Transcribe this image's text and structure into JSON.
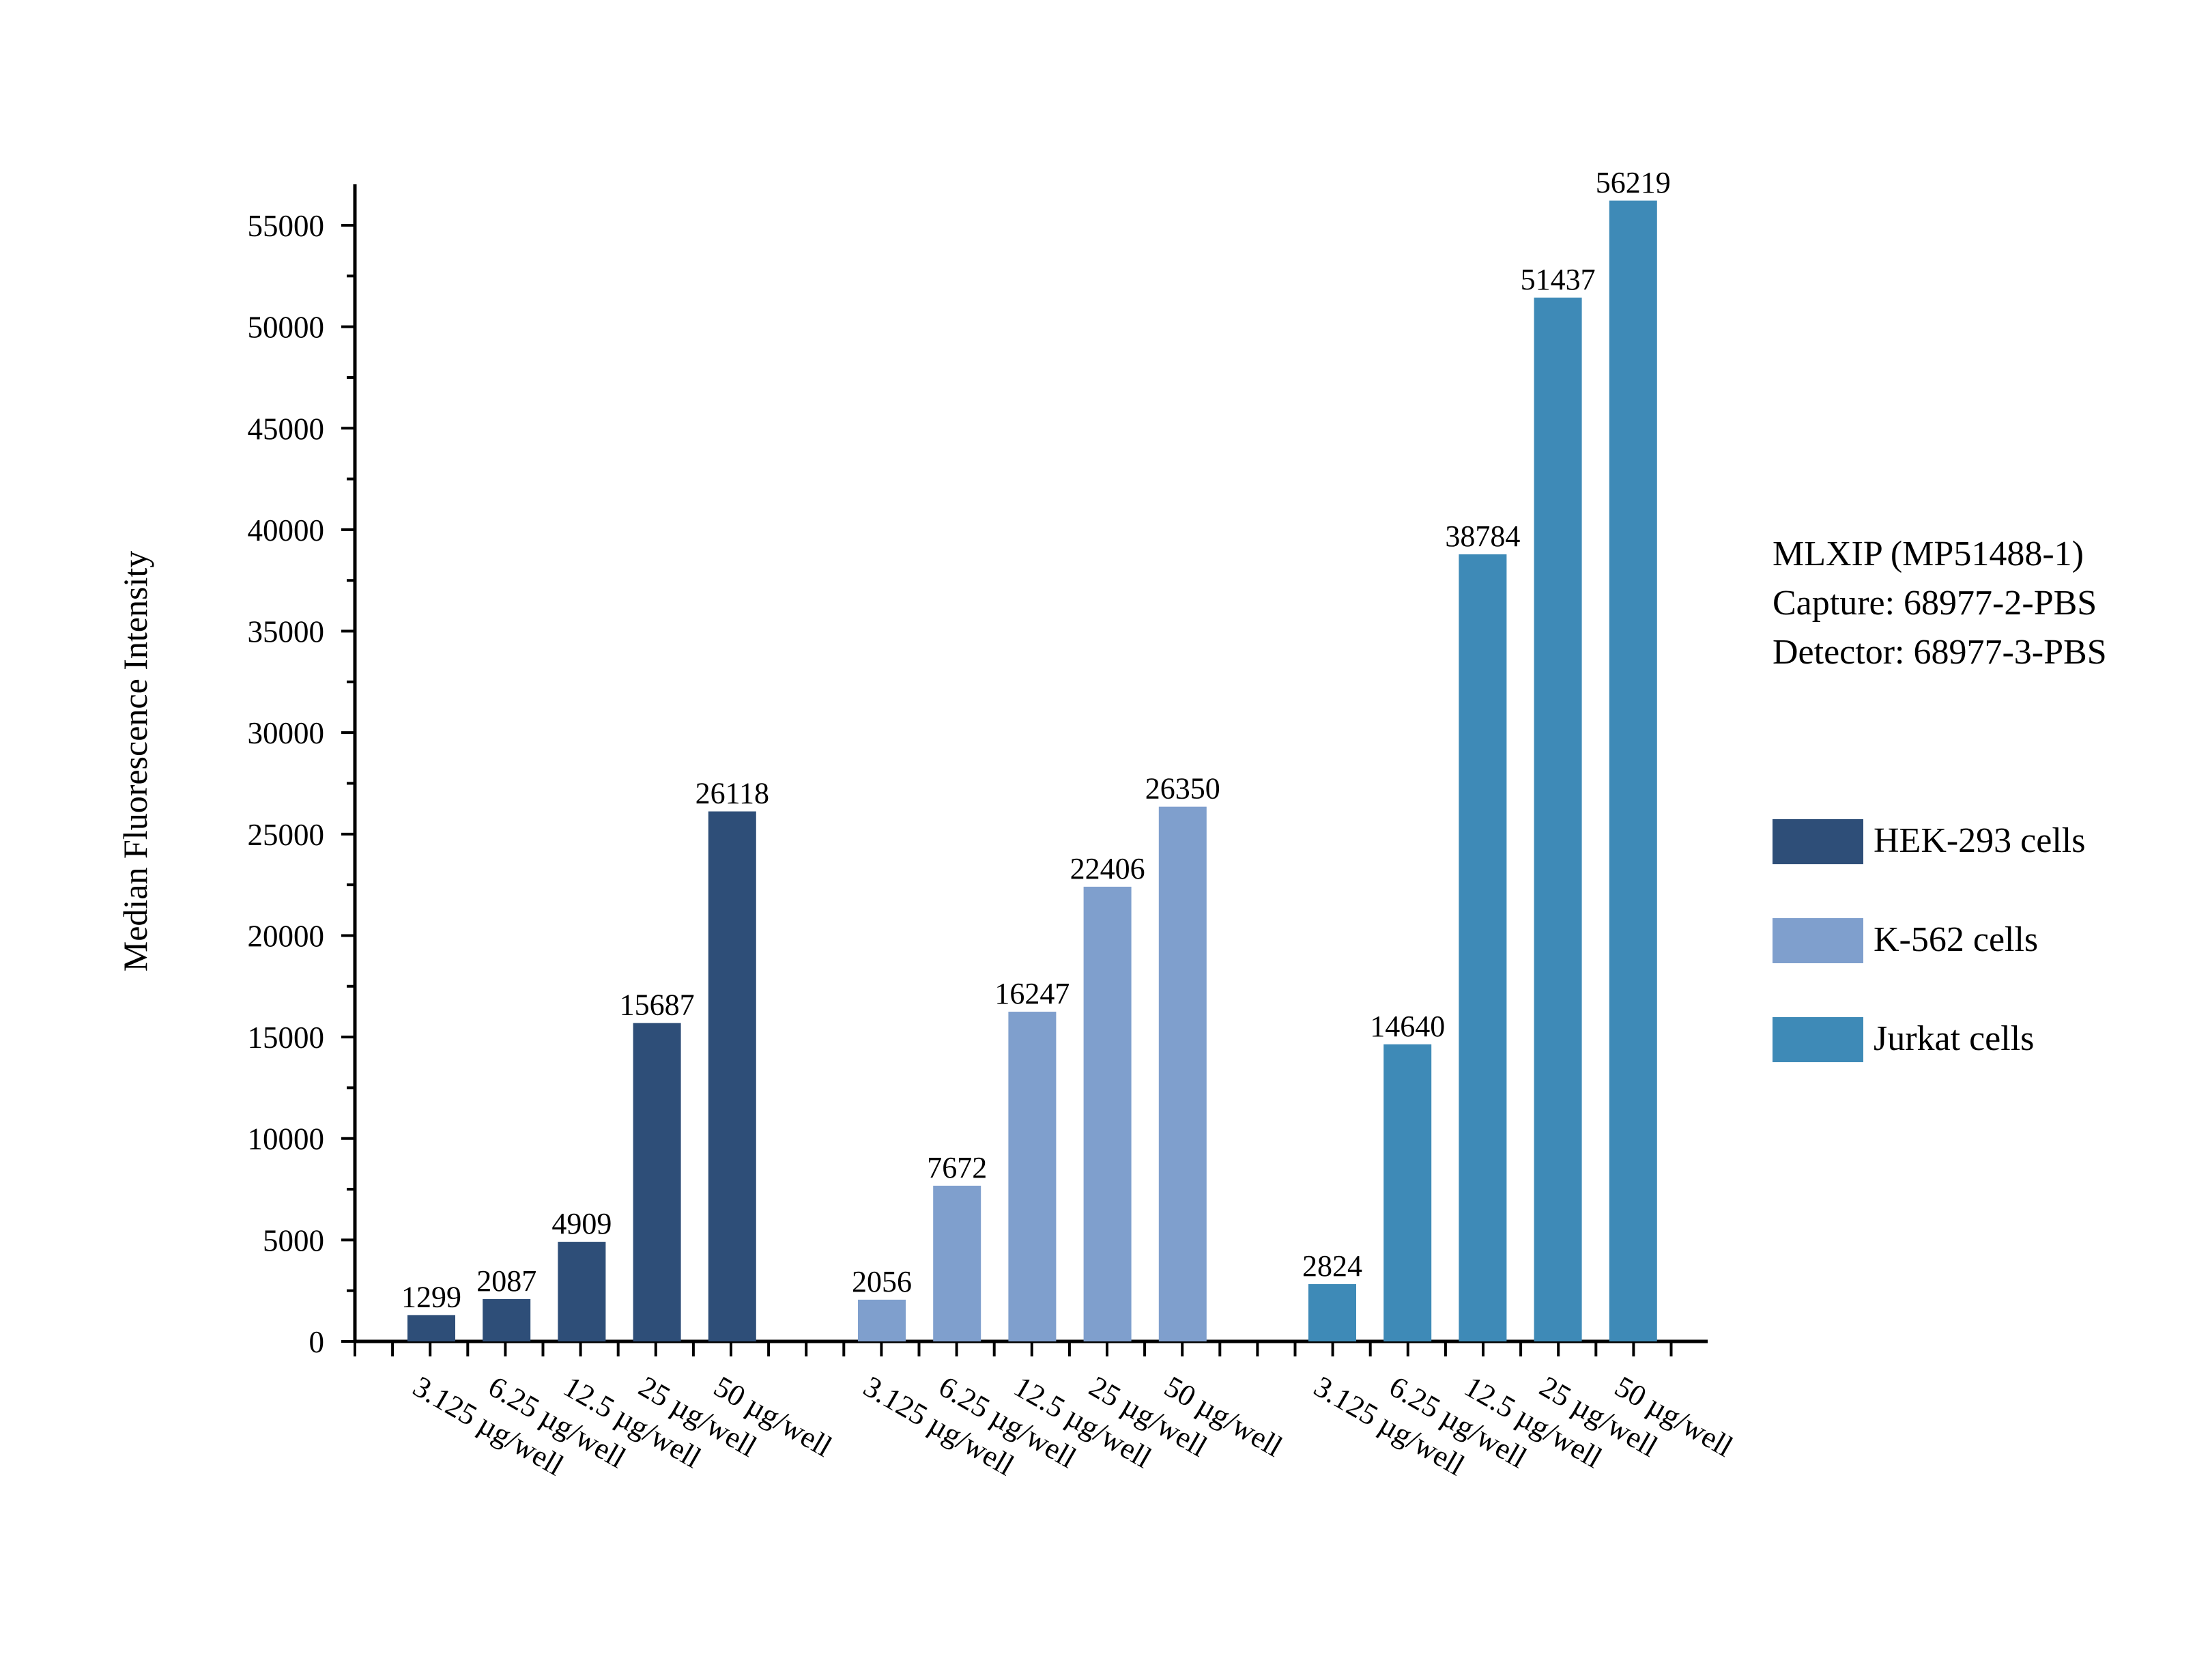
{
  "chart_data": {
    "type": "bar",
    "ylabel": "Median Fluorescence Intensity",
    "ylim": [
      0,
      57000
    ],
    "yticks": [
      0,
      5000,
      10000,
      15000,
      20000,
      25000,
      30000,
      35000,
      40000,
      45000,
      50000,
      55000
    ],
    "y_minor_step": 2500,
    "categories": [
      "3.125 µg/well",
      "6.25 µg/well",
      "12.5 µg/well",
      "25 µg/well",
      "50 µg/well"
    ],
    "series": [
      {
        "name": "HEK-293 cells",
        "color": "#2E4E78",
        "values": [
          1299,
          2087,
          4909,
          15687,
          26118
        ]
      },
      {
        "name": "K-562 cells",
        "color": "#7F9FCD",
        "values": [
          2056,
          7672,
          16247,
          22406,
          26350
        ]
      },
      {
        "name": "Jurkat cells",
        "color": "#3E8AB7",
        "values": [
          2824,
          14640,
          38784,
          51437,
          56219
        ]
      }
    ],
    "annotation": [
      "MLXIP (MP51488-1)",
      "Capture: 68977-2-PBS",
      "Detector: 68977-3-PBS"
    ],
    "grid": false,
    "legend_position": "right"
  }
}
